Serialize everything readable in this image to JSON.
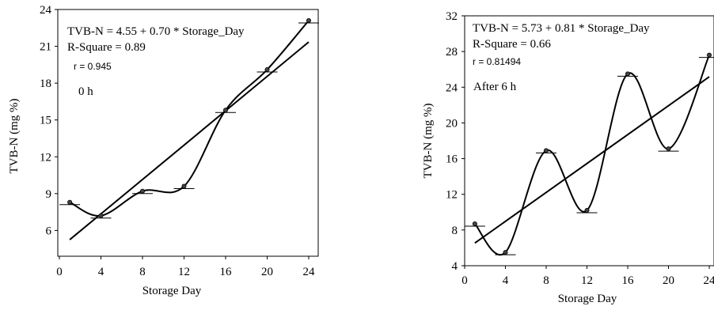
{
  "chart_data": [
    {
      "type": "scatter",
      "x": [
        1,
        4,
        8,
        12,
        16,
        20,
        24
      ],
      "y": [
        8.3,
        7.2,
        9.2,
        9.6,
        15.8,
        19.1,
        23.1
      ],
      "fit_line": {
        "intercept": 4.55,
        "slope": 0.7
      },
      "smooth_curve": true,
      "annotations": {
        "equation": "TVB-N = 4.55 + 0.70 * Storage_Day",
        "r_square": "R-Square = 0.89",
        "r": "r = 0.945",
        "label": "0 h"
      },
      "xlabel": "Storage Day",
      "ylabel": "TVB-N (mg %)",
      "xlim": [
        0,
        24
      ],
      "ylim": [
        3.9,
        24
      ],
      "xticks": [
        0,
        4,
        8,
        12,
        16,
        20,
        24
      ],
      "yticks": [
        6,
        9,
        12,
        15,
        18,
        21,
        24
      ],
      "grid": false
    },
    {
      "type": "scatter",
      "x": [
        1,
        4,
        8,
        12,
        16,
        20,
        24
      ],
      "y": [
        8.7,
        5.5,
        16.9,
        10.2,
        25.5,
        17.1,
        27.6
      ],
      "fit_line": {
        "intercept": 5.73,
        "slope": 0.81
      },
      "smooth_curve": true,
      "annotations": {
        "equation": "TVB-N = 5.73 + 0.81 * Storage_Day",
        "r_square": "R-Square = 0.66",
        "r": "r = 0.81494",
        "label": "After 6 h"
      },
      "xlabel": "Storage Day",
      "ylabel": "TVB-N (mg %)",
      "xlim": [
        0,
        24
      ],
      "ylim": [
        4,
        32
      ],
      "xticks": [
        0,
        4,
        8,
        12,
        16,
        20,
        24
      ],
      "yticks": [
        4,
        8,
        12,
        16,
        20,
        24,
        28,
        32
      ],
      "grid": false
    }
  ]
}
